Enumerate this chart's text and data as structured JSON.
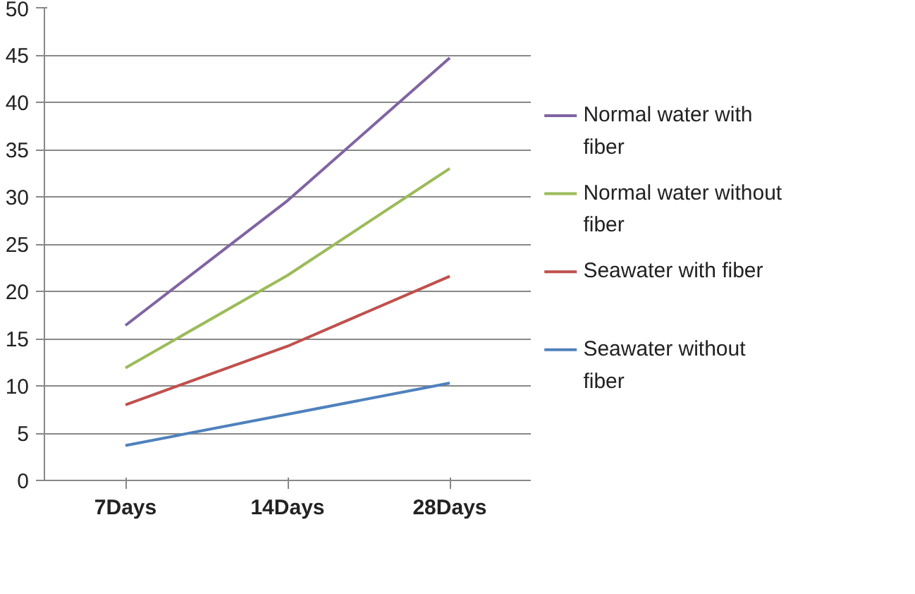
{
  "chart_data": {
    "type": "line",
    "categories": [
      "7Days",
      "14Days",
      "28Days"
    ],
    "series": [
      {
        "name": "Normal water with fiber",
        "color": "#8064a2",
        "values": [
          16.4,
          29.6,
          44.7
        ]
      },
      {
        "name": "Normal water without fiber",
        "color": "#9bbb59",
        "values": [
          11.9,
          21.7,
          33.0
        ]
      },
      {
        "name": "Seawater with fiber",
        "color": "#c0504d",
        "values": [
          8.0,
          14.2,
          21.6
        ]
      },
      {
        "name": "Seawater without fiber",
        "color": "#4f81bd",
        "values": [
          3.7,
          7.0,
          10.3
        ]
      }
    ],
    "ylim": [
      0,
      50
    ],
    "yticks": [
      0,
      5,
      10,
      15,
      20,
      25,
      30,
      35,
      40,
      45,
      50
    ],
    "grid": "y",
    "legend": "right",
    "marker": "none",
    "line_style": "solid"
  }
}
